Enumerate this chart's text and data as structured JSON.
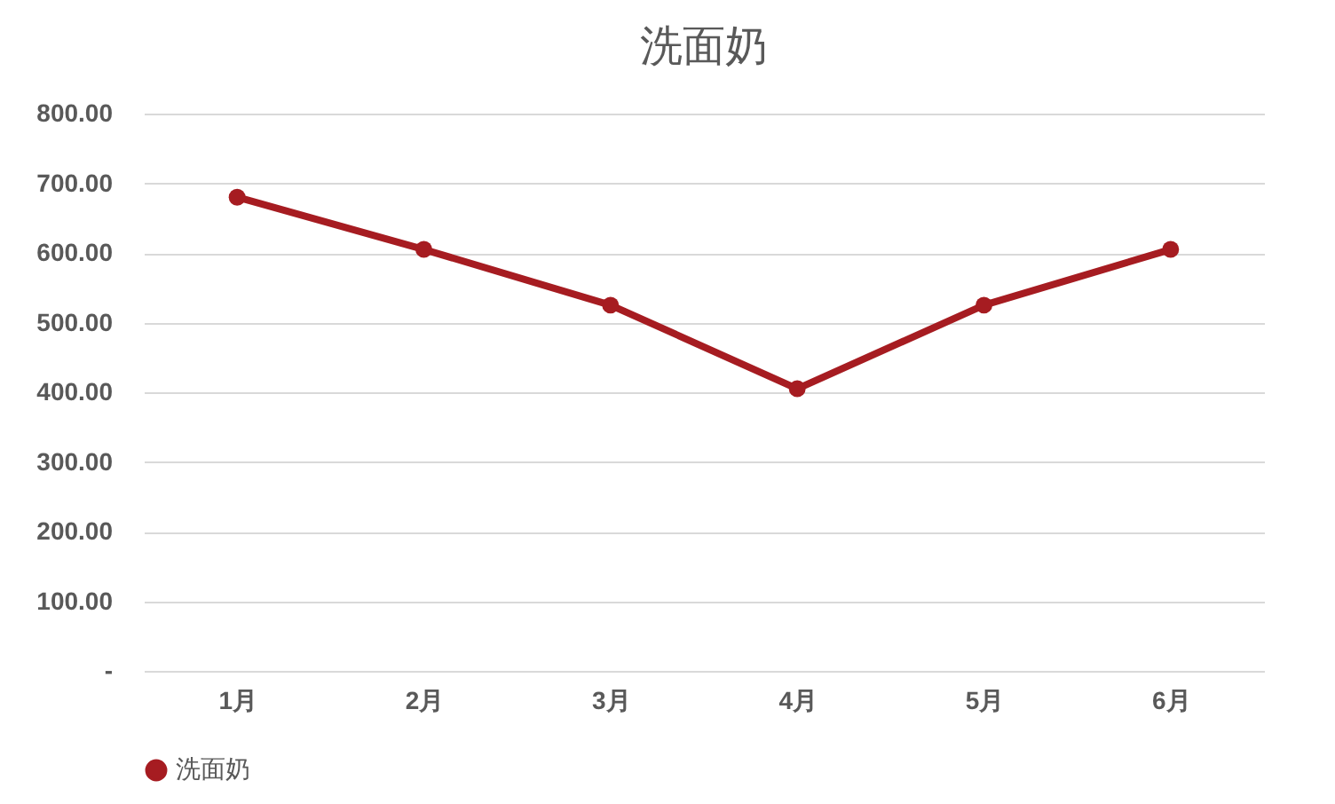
{
  "chart_data": {
    "type": "line",
    "title": "洗面奶",
    "categories": [
      "1月",
      "2月",
      "3月",
      "4月",
      "5月",
      "6月"
    ],
    "series": [
      {
        "name": "洗面奶",
        "color": "#a61c21",
        "values": [
          680,
          605,
          525,
          405,
          525,
          605
        ]
      }
    ],
    "ylim": [
      0,
      800
    ],
    "yticks": [
      {
        "value": 0,
        "label": "-"
      },
      {
        "value": 100,
        "label": "100.00"
      },
      {
        "value": 200,
        "label": "200.00"
      },
      {
        "value": 300,
        "label": "300.00"
      },
      {
        "value": 400,
        "label": "400.00"
      },
      {
        "value": 500,
        "label": "500.00"
      },
      {
        "value": 600,
        "label": "600.00"
      },
      {
        "value": 700,
        "label": "700.00"
      },
      {
        "value": 800,
        "label": "800.00"
      }
    ],
    "grid": "y",
    "legend": "bottom",
    "marker": "circle",
    "line_style": "solid"
  }
}
